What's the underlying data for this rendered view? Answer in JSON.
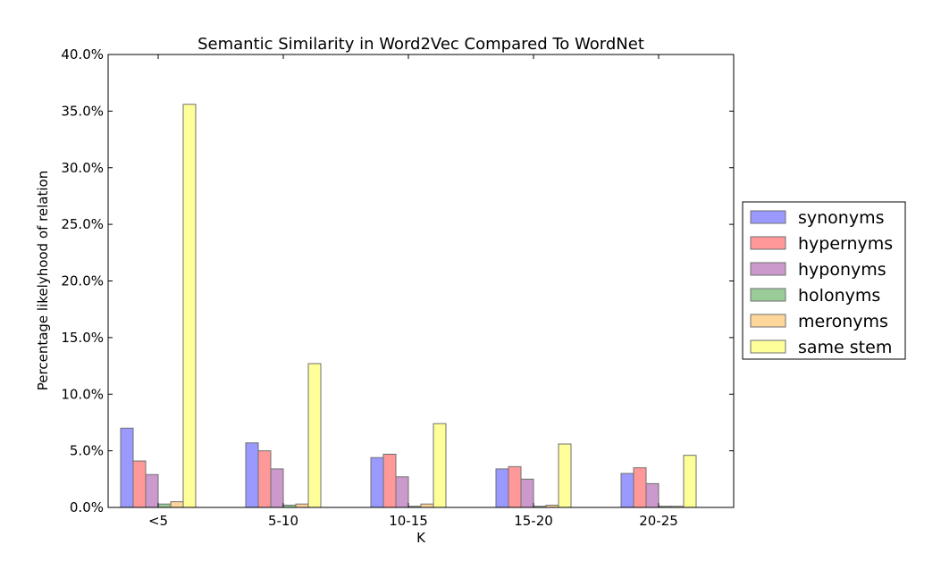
{
  "chart_data": {
    "type": "bar",
    "title": "Semantic Similarity in Word2Vec Compared To WordNet",
    "xlabel": "K",
    "ylabel": "Percentage likelyhood of relation",
    "categories": [
      "<5",
      "5-10",
      "10-15",
      "15-20",
      "20-25"
    ],
    "ylim": [
      0,
      40
    ],
    "yticks": [
      "0.0%",
      "5.0%",
      "10.0%",
      "15.0%",
      "20.0%",
      "25.0%",
      "30.0%",
      "35.0%",
      "40.0%"
    ],
    "grid": false,
    "legend_position": "right-outside",
    "series": [
      {
        "name": "synonyms",
        "color": "#9999ff",
        "values": [
          7.0,
          5.7,
          4.4,
          3.4,
          3.0
        ]
      },
      {
        "name": "hypernyms",
        "color": "#ff9999",
        "values": [
          4.1,
          5.0,
          4.7,
          3.6,
          3.5
        ]
      },
      {
        "name": "hyponyms",
        "color": "#cc99cc",
        "values": [
          2.9,
          3.4,
          2.7,
          2.5,
          2.1
        ]
      },
      {
        "name": "holonyms",
        "color": "#99cc99",
        "values": [
          0.3,
          0.2,
          0.1,
          0.1,
          0.1
        ]
      },
      {
        "name": "meronyms",
        "color": "#ffd699",
        "values": [
          0.5,
          0.3,
          0.3,
          0.2,
          0.1
        ]
      },
      {
        "name": "same stem",
        "color": "#ffff99",
        "values": [
          35.6,
          12.7,
          7.4,
          5.6,
          4.6
        ]
      }
    ]
  }
}
